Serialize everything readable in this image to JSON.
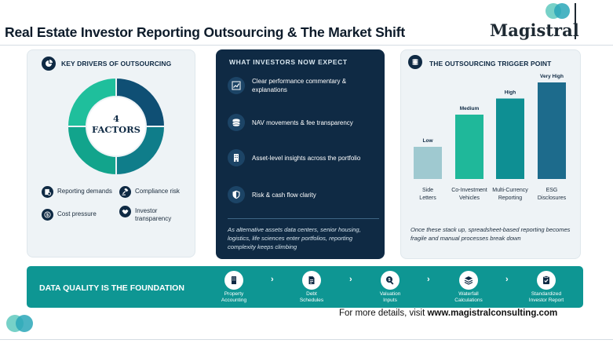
{
  "title": "Real Estate Investor Reporting Outsourcing & The Market Shift",
  "brand": {
    "name": "Magistral"
  },
  "colors": {
    "navy": "#0f2a44",
    "teal": "#0e9693",
    "mint": "#1fb89a",
    "steel": "#1d6b8c",
    "light_teal": "#9fc9d0"
  },
  "drivers": {
    "heading": "KEY DRIVERS OF OUTSOURCING",
    "center_number": "4",
    "center_label": "FACTORS",
    "items": [
      {
        "label": "Reporting demands",
        "icon": "document-gear-icon"
      },
      {
        "label": "Compliance risk",
        "icon": "gavel-icon"
      },
      {
        "label": "Cost pressure",
        "icon": "dollar-icon"
      },
      {
        "label": "Investor transparency",
        "icon": "handshake-icon"
      }
    ]
  },
  "expect": {
    "heading": "WHAT INVESTORS NOW EXPECT",
    "items": [
      {
        "label": "Clear performance commentary & explanations",
        "icon": "trend-chart-icon"
      },
      {
        "label": "NAV movements & fee transparency",
        "icon": "coins-icon"
      },
      {
        "label": "Asset-level insights across the portfolio",
        "icon": "building-icon"
      },
      {
        "label": "Risk & cash flow clarity",
        "icon": "shield-icon"
      }
    ],
    "note": "As alternative assets data centers, senior housing, logistics, life sciences enter portfolios, reporting complexity keeps climbing"
  },
  "trigger": {
    "heading": "THE OUTSOURCING TRIGGER POINT",
    "note": "Once these stack up, spreadsheet-based reporting becomes fragile and manual processes break down"
  },
  "chart_data": {
    "type": "bar",
    "title": "THE OUTSOURCING TRIGGER POINT",
    "categories": [
      "Side Letters",
      "Co-Investment Vehicles",
      "Multi-Currency Reporting",
      "ESG Disclosures"
    ],
    "category_lines": [
      [
        "Side",
        "Letters"
      ],
      [
        "Co-Investment",
        "Vehicles"
      ],
      [
        "Multi-Currency",
        "Reporting"
      ],
      [
        "ESG",
        "Disclosures"
      ]
    ],
    "data_labels": [
      "Low",
      "Medium",
      "High",
      "Very High"
    ],
    "values": [
      1,
      2,
      2.5,
      3
    ],
    "colors": [
      "#9fc9d0",
      "#1fb89a",
      "#0e8f93",
      "#1d6b8c"
    ],
    "ylim": [
      0,
      3
    ],
    "grid": false,
    "legend": "none"
  },
  "band": {
    "title": "DATA QUALITY IS THE FOUNDATION",
    "steps": [
      {
        "label_1": "Property",
        "label_2": "Accounting",
        "icon": "building-icon"
      },
      {
        "label_1": "Debt",
        "label_2": "Schedules",
        "icon": "document-icon"
      },
      {
        "label_1": "Valuation",
        "label_2": "Inputs",
        "icon": "search-dollar-icon"
      },
      {
        "label_1": "Waterfall",
        "label_2": "Calculations",
        "icon": "layers-icon"
      },
      {
        "label_1": "Standardized",
        "label_2": "Investor Report",
        "icon": "clipboard-check-icon"
      }
    ],
    "chevron": "›"
  },
  "footer": {
    "prefix": "For more details, visit",
    "url": "www.magistralconsulting.com"
  }
}
